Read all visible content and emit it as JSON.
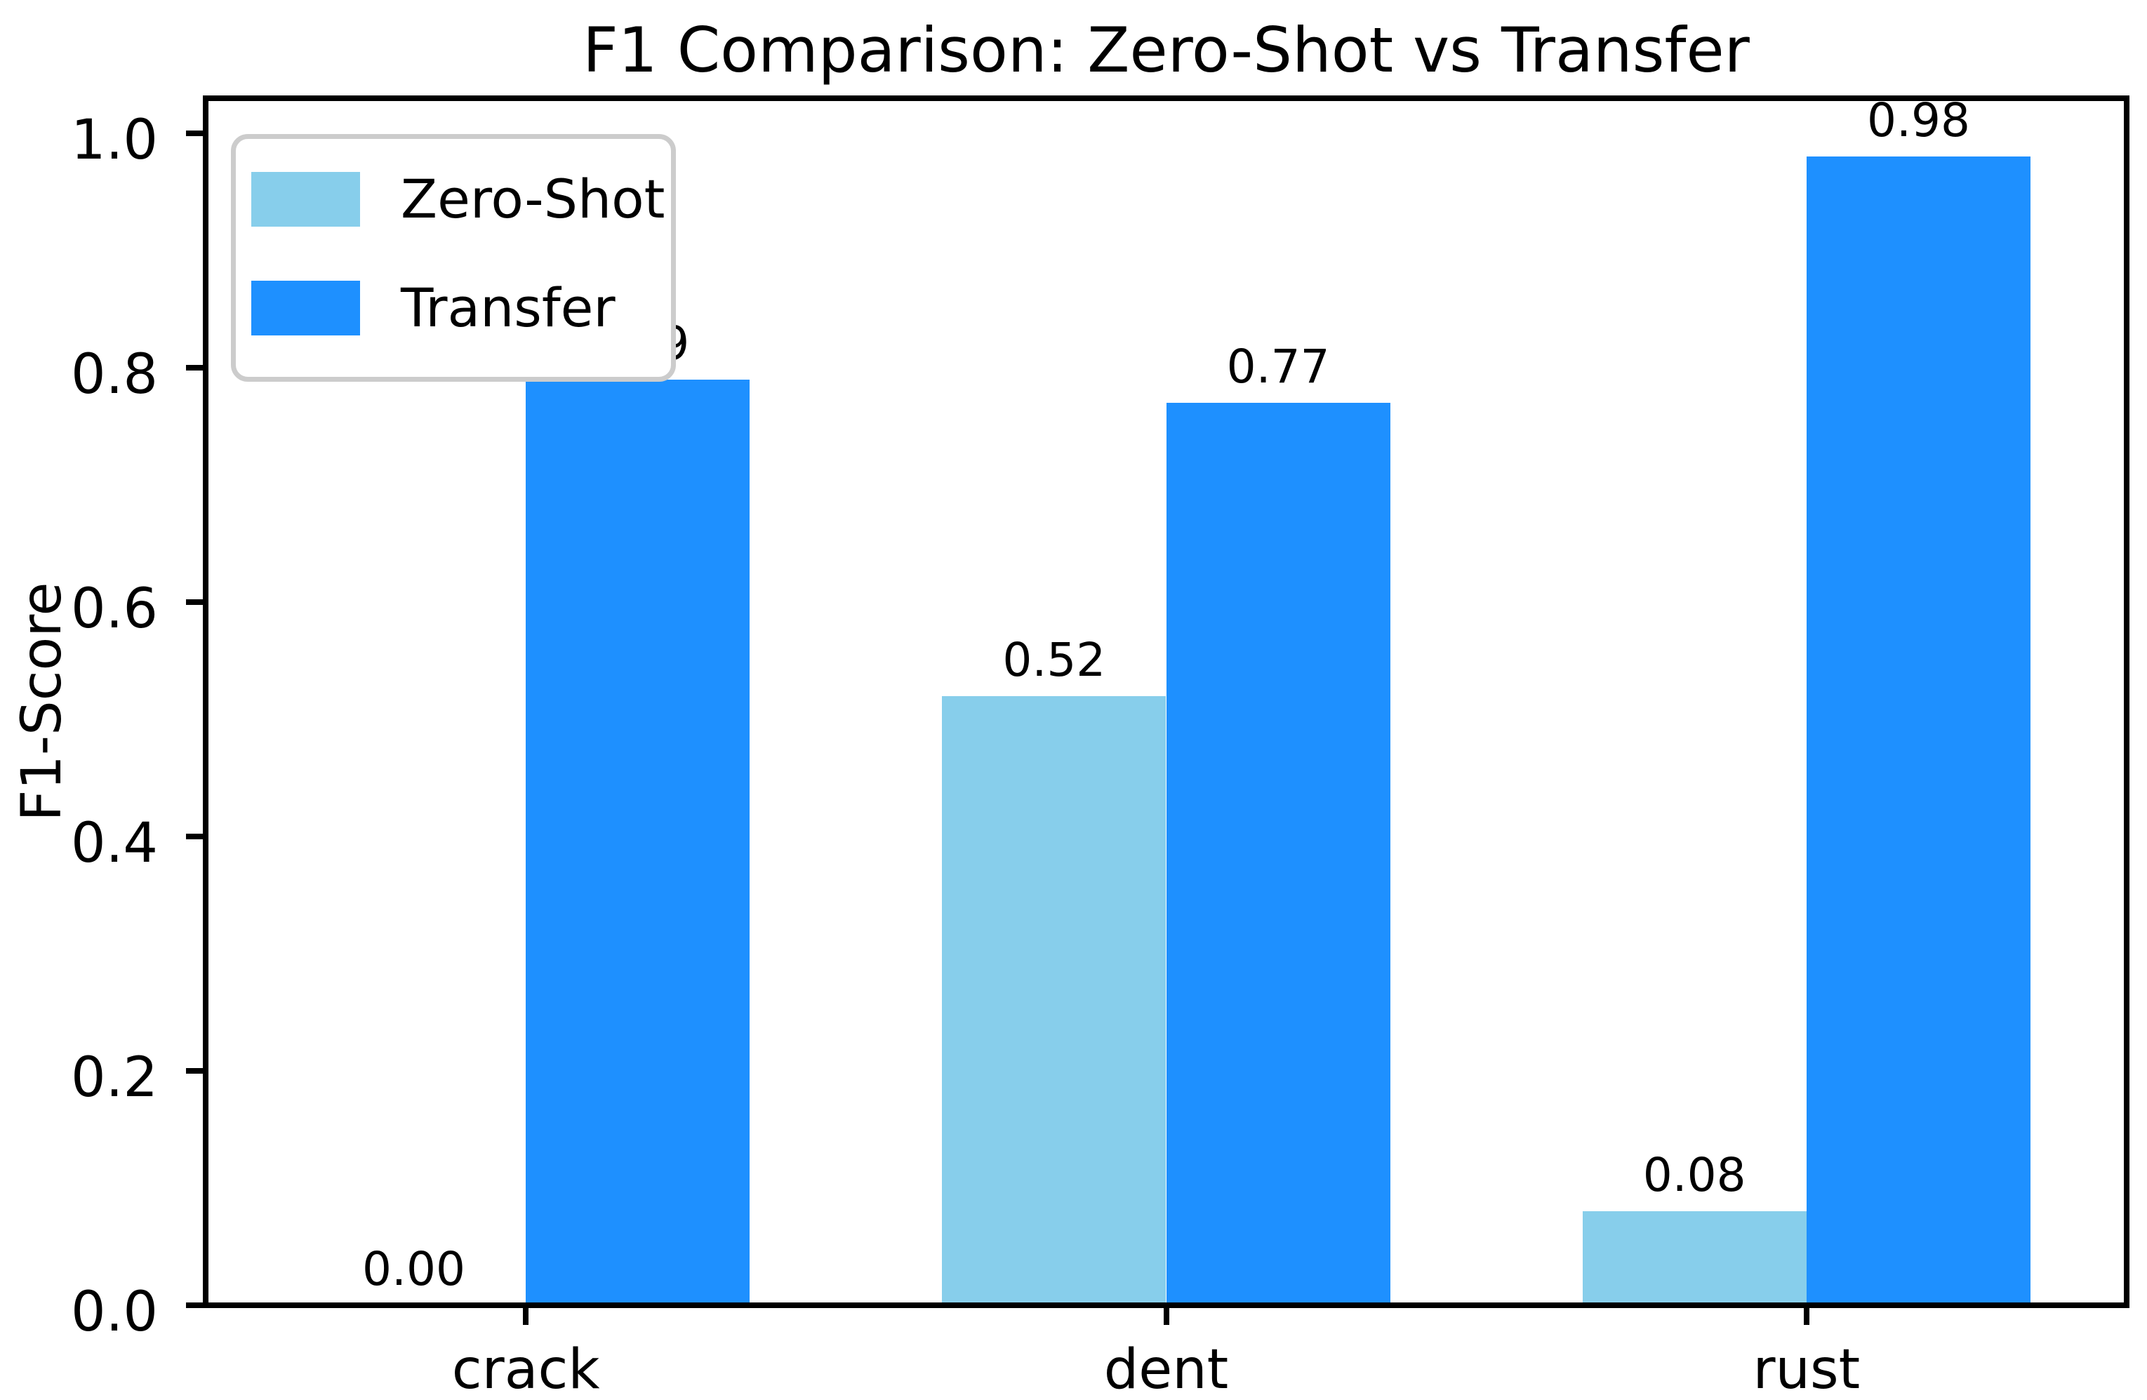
{
  "chart_data": {
    "type": "bar",
    "title": "F1 Comparison: Zero-Shot vs Transfer",
    "xlabel": "",
    "ylabel": "F1-Score",
    "categories": [
      "crack",
      "dent",
      "rust"
    ],
    "series": [
      {
        "name": "Zero-Shot",
        "color": "#87CEEB",
        "values": [
          0.0,
          0.52,
          0.08
        ],
        "labels": [
          "0.00",
          "0.52",
          "0.08"
        ]
      },
      {
        "name": "Transfer",
        "color": "#1E90FF",
        "values": [
          0.79,
          0.77,
          0.98
        ],
        "labels": [
          "0.79",
          "0.77",
          "0.98"
        ]
      }
    ],
    "bar_width": 0.35,
    "ylim": [
      0,
      1.03
    ],
    "yticks": {
      "values": [
        0.0,
        0.2,
        0.4,
        0.6,
        0.8,
        1.0
      ],
      "labels": [
        "0.0",
        "0.2",
        "0.4",
        "0.6",
        "0.8",
        "1.0"
      ]
    },
    "grid": false,
    "legend": {
      "position": "upper left",
      "entries": [
        "Zero-Shot",
        "Transfer"
      ]
    }
  },
  "colors": {
    "spine": "#000000",
    "text": "#000000",
    "legend_edge": "#cccccc",
    "background": "#ffffff"
  }
}
